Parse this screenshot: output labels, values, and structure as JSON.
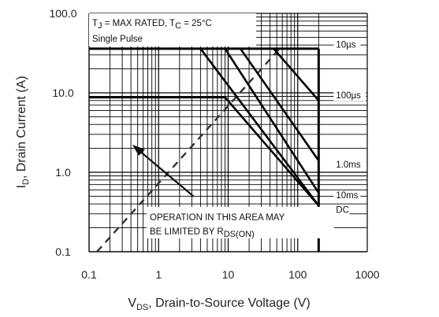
{
  "chart_data": {
    "type": "line",
    "x_scale": "log",
    "y_scale": "log",
    "xlim": [
      0.1,
      1000
    ],
    "ylim": [
      0.1,
      100
    ],
    "grid": true,
    "x_ticks": [
      "0.1",
      "1",
      "10",
      "100",
      "1000"
    ],
    "y_ticks": [
      "100.0",
      "10.0",
      "1.0",
      "0.1"
    ],
    "xlabel": {
      "main": "V",
      "sub": "DS",
      "rest": ", Drain-to-Source Voltage (V)"
    },
    "ylabel": {
      "main": "I",
      "sub": "D",
      "rest": ", Drain Current (A)"
    },
    "conditions": {
      "tj_main": "T",
      "tj_sub": "J",
      "tj_rest": " = MAX RATED, T",
      "tc_sub": "C",
      "tc_rest": " = 25°C",
      "pulse": "Single Pulse"
    },
    "annotation": {
      "line1": "OPERATION IN THIS AREA MAY",
      "line2_main": "BE LIMITED BY R",
      "line2_sub": "DS(ON)"
    },
    "rds_on_limit": {
      "x": [
        0.13,
        55
      ],
      "y": [
        0.1,
        36
      ]
    },
    "current_limits": [
      {
        "x": [
          0.1,
          200
        ],
        "y": [
          36,
          36
        ]
      },
      {
        "x": [
          0.1,
          9
        ],
        "y": [
          8.8,
          8.8
        ]
      }
    ],
    "voltage_limit": {
      "x": [
        200,
        200
      ],
      "y": [
        0.1,
        36
      ]
    },
    "series": [
      {
        "name": "10µs",
        "x": [
          45,
          200
        ],
        "y": [
          36,
          8
        ]
      },
      {
        "name": "100µs",
        "x": [
          15,
          200
        ],
        "y": [
          36,
          1.4
        ]
      },
      {
        "name": "1.0ms",
        "x": [
          9,
          200
        ],
        "y": [
          36,
          0.55
        ]
      },
      {
        "name": "10ms",
        "x": [
          9,
          200
        ],
        "y": [
          8.8,
          0.38
        ]
      },
      {
        "name": "DC",
        "x": [
          4,
          200
        ],
        "y": [
          36,
          0.38
        ]
      }
    ],
    "series_labels": [
      {
        "name": "10µs",
        "x": 355,
        "y": 37
      },
      {
        "name": "100µs",
        "x": 355,
        "y": 8.5
      },
      {
        "name": "1.0ms",
        "x": 355,
        "y": 1.15
      },
      {
        "name": "10ms",
        "x": 355,
        "y": 0.47
      },
      {
        "name": "DC",
        "x": 355,
        "y": 0.31
      }
    ]
  }
}
